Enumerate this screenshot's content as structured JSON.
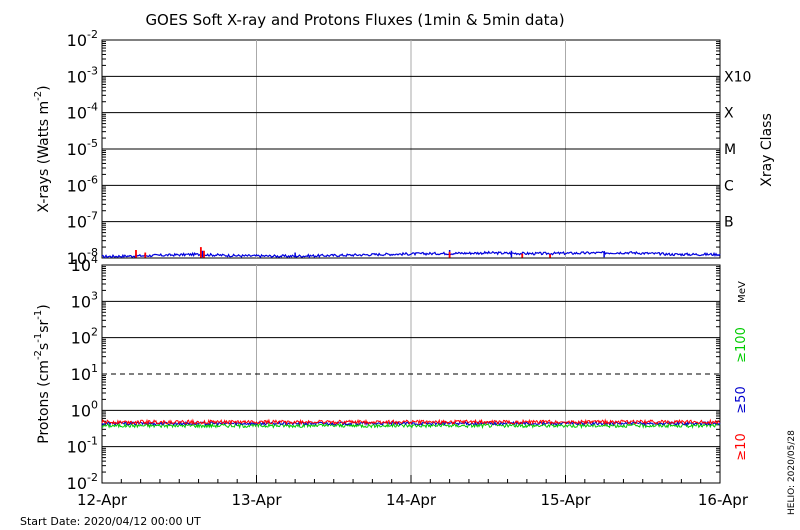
{
  "title": "GOES Soft X-ray and Protons Fluxes   (1min & 5min data)",
  "start_date": "Start Date: 2020/04/12 00:00 UT",
  "credit": "HELIO: 2020/05/28",
  "colors": {
    "long": "#0000dd",
    "short": "#ff0000",
    "p10": "#ff0000",
    "p50": "#0000cc",
    "p100": "#00cc00",
    "grid": "#000000",
    "day_line": "#aaaaaa"
  },
  "chart_data": [
    {
      "type": "line",
      "name": "xray",
      "ylabel_parts": [
        "X-rays (Watts m",
        "-2",
        ")"
      ],
      "ylim_exp": [
        -8,
        -2
      ],
      "yscale": "log",
      "ytick_exponents": [
        "-8",
        "-7",
        "-6",
        "-5",
        "-4",
        "-3",
        "-2"
      ],
      "class_axis_label": "Xray Class",
      "class_labels": [
        {
          "label": "B",
          "exp": -7
        },
        {
          "label": "C",
          "exp": -6
        },
        {
          "label": "M",
          "exp": -5
        },
        {
          "label": "X",
          "exp": -4
        },
        {
          "label": "X10",
          "exp": -3
        }
      ],
      "series": [
        {
          "key": "long",
          "baseline_log": [
            [
              0,
              -7.96
            ],
            [
              0.35,
              -7.93
            ],
            [
              0.6,
              -7.9
            ],
            [
              0.9,
              -7.94
            ],
            [
              1.2,
              -7.95
            ],
            [
              1.5,
              -7.93
            ],
            [
              1.8,
              -7.9
            ],
            [
              2.1,
              -7.88
            ],
            [
              2.5,
              -7.86
            ],
            [
              2.8,
              -7.88
            ],
            [
              3.0,
              -7.87
            ],
            [
              3.4,
              -7.85
            ],
            [
              3.7,
              -7.9
            ],
            [
              4.0,
              -7.9
            ]
          ],
          "spikes": [
            [
              0.65,
              -7.8
            ],
            [
              1.25,
              -7.85
            ],
            [
              2.25,
              -7.78
            ],
            [
              2.65,
              -7.8
            ],
            [
              3.25,
              -7.84
            ]
          ]
        },
        {
          "key": "short",
          "spikes": [
            [
              0.22,
              -7.78
            ],
            [
              0.28,
              -7.85
            ],
            [
              0.64,
              -7.7
            ],
            [
              0.66,
              -7.8
            ],
            [
              2.25,
              -7.83
            ],
            [
              2.72,
              -7.88
            ],
            [
              2.9,
              -7.9
            ]
          ]
        }
      ]
    },
    {
      "type": "line",
      "name": "protons",
      "ylabel_parts": [
        "Protons (cm",
        "-2",
        "s",
        "-1",
        "sr",
        "-1",
        ")"
      ],
      "ylim_exp": [
        -2,
        4
      ],
      "yscale": "log",
      "ytick_exponents": [
        "-2",
        "-1",
        "0",
        "1",
        "2",
        "3",
        "4"
      ],
      "dashed_threshold_exp": 1,
      "energy_unit": "MeV",
      "energy_labels": [
        {
          "label": "≥100",
          "key": "p100"
        },
        {
          "label": "≥50",
          "key": "p50"
        },
        {
          "label": "≥10",
          "key": "p10"
        }
      ],
      "series": [
        {
          "key": "p100",
          "level_log": -0.42,
          "noise": 0.05
        },
        {
          "key": "p50",
          "level_log": -0.36,
          "noise": 0.04
        },
        {
          "key": "p10",
          "level_log": -0.32,
          "noise": 0.05
        }
      ]
    }
  ],
  "x_axis": {
    "days": 4,
    "tick_labels": [
      "12-Apr",
      "13-Apr",
      "14-Apr",
      "15-Apr",
      "16-Apr"
    ]
  }
}
